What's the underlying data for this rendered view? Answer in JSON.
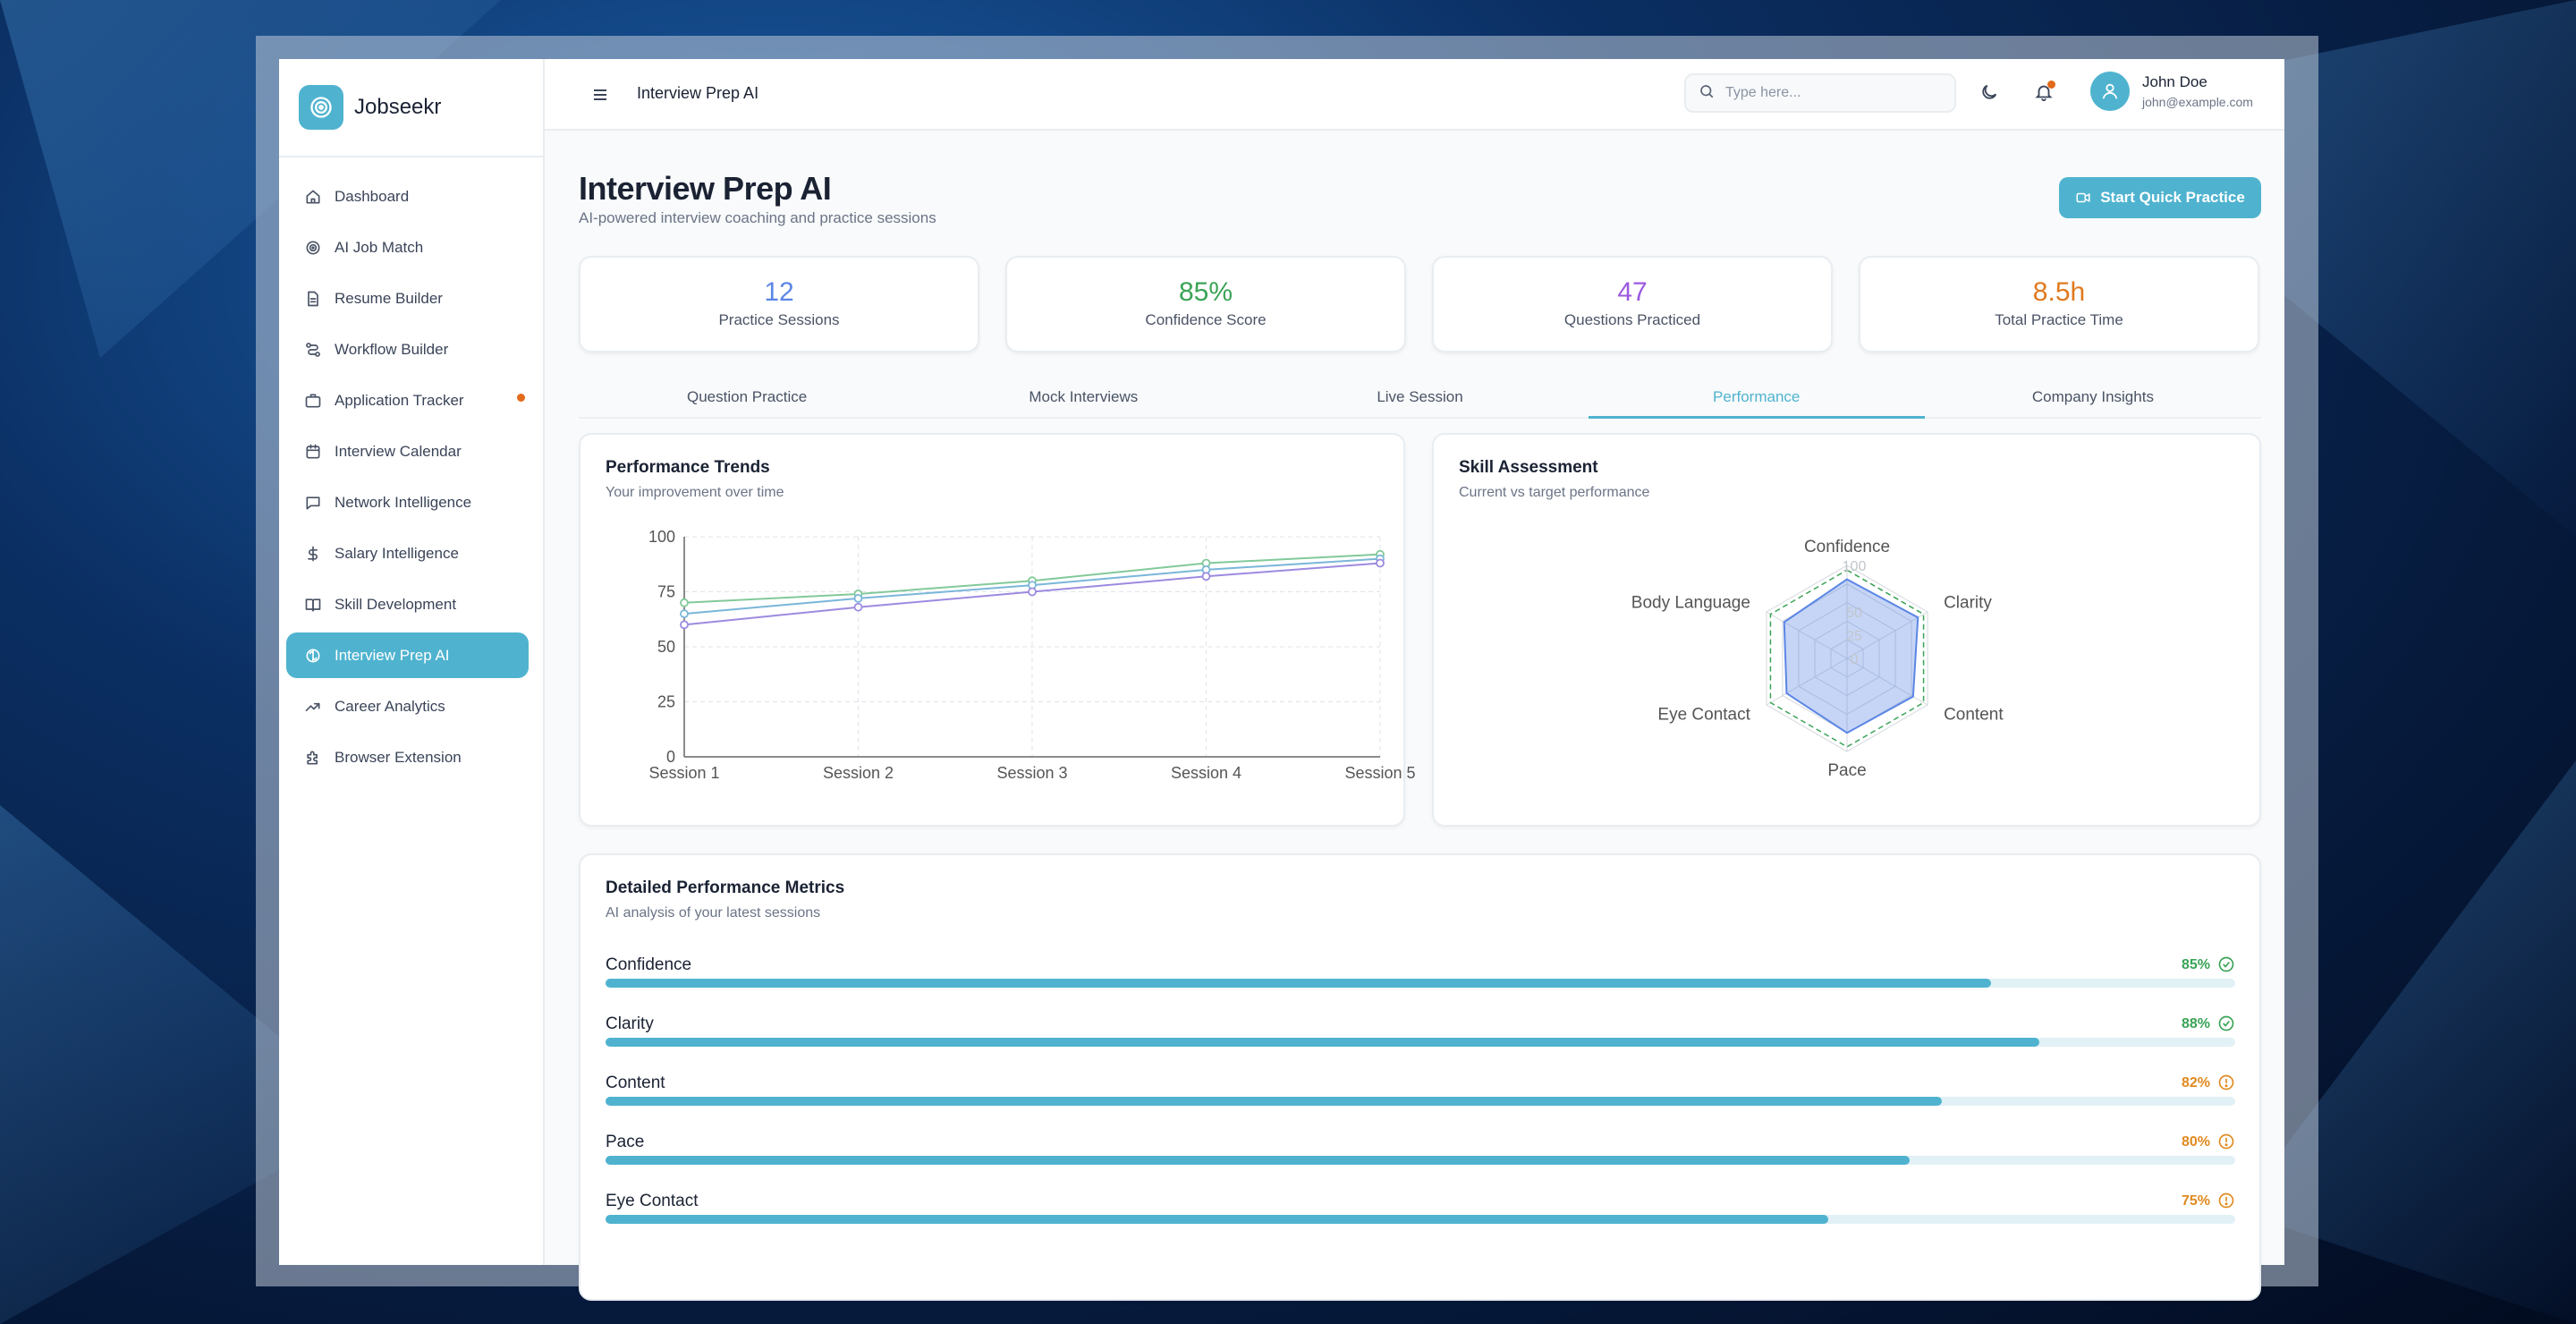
{
  "brand": {
    "name": "Jobseekr"
  },
  "sidebar": {
    "items": [
      {
        "label": "Dashboard",
        "icon": "home-icon"
      },
      {
        "label": "AI Job Match",
        "icon": "target-icon"
      },
      {
        "label": "Resume Builder",
        "icon": "document-icon"
      },
      {
        "label": "Workflow Builder",
        "icon": "workflow-icon"
      },
      {
        "label": "Application Tracker",
        "icon": "briefcase-icon",
        "notification": true
      },
      {
        "label": "Interview Calendar",
        "icon": "calendar-icon"
      },
      {
        "label": "Network Intelligence",
        "icon": "chat-icon"
      },
      {
        "label": "Salary Intelligence",
        "icon": "dollar-icon"
      },
      {
        "label": "Skill Development",
        "icon": "book-icon"
      },
      {
        "label": "Interview Prep AI",
        "icon": "brain-icon",
        "active": true
      },
      {
        "label": "Career Analytics",
        "icon": "trend-icon"
      },
      {
        "label": "Browser Extension",
        "icon": "puzzle-icon"
      }
    ]
  },
  "topbar": {
    "title": "Interview Prep AI",
    "search_placeholder": "Type here...",
    "user": {
      "name": "John Doe",
      "email": "john@example.com"
    }
  },
  "page": {
    "title": "Interview Prep AI",
    "subtitle": "AI-powered interview coaching and practice sessions",
    "quick_button": "Start Quick Practice"
  },
  "stats": [
    {
      "value": "12",
      "label": "Practice Sessions",
      "color": "#5b86e5"
    },
    {
      "value": "85%",
      "label": "Confidence Score",
      "color": "#3aa356"
    },
    {
      "value": "47",
      "label": "Questions Practiced",
      "color": "#9b59e0"
    },
    {
      "value": "8.5h",
      "label": "Total Practice Time",
      "color": "#e07a1f"
    }
  ],
  "tabs": [
    {
      "label": "Question Practice"
    },
    {
      "label": "Mock Interviews"
    },
    {
      "label": "Live Session"
    },
    {
      "label": "Performance",
      "active": true
    },
    {
      "label": "Company Insights"
    }
  ],
  "trends": {
    "title": "Performance Trends",
    "subtitle": "Your improvement over time"
  },
  "skills": {
    "title": "Skill Assessment",
    "subtitle": "Current vs target performance"
  },
  "metrics_card": {
    "title": "Detailed Performance Metrics",
    "subtitle": "AI analysis of your latest sessions"
  },
  "metrics": [
    {
      "name": "Confidence",
      "value": 85,
      "label": "85%",
      "status": "good"
    },
    {
      "name": "Clarity",
      "value": 88,
      "label": "88%",
      "status": "good"
    },
    {
      "name": "Content",
      "value": 82,
      "label": "82%",
      "status": "warn"
    },
    {
      "name": "Pace",
      "value": 80,
      "label": "80%",
      "status": "warn"
    },
    {
      "name": "Eye Contact",
      "value": 75,
      "label": "75%",
      "status": "warn"
    }
  ],
  "colors": {
    "accent": "#4fb3cf",
    "good": "#3aa356",
    "warn": "#e08a1f",
    "dot": "#e36a1c"
  },
  "chart_data": [
    {
      "type": "line",
      "x": [
        "Session 1",
        "Session 2",
        "Session 3",
        "Session 4",
        "Session 5"
      ],
      "ylim": [
        0,
        100
      ],
      "yticks": [
        0,
        25,
        50,
        75,
        100
      ],
      "grid": true,
      "series": [
        {
          "color": "#82c99a",
          "values": [
            70,
            74,
            80,
            88,
            92
          ]
        },
        {
          "color": "#7ab6d9",
          "values": [
            65,
            72,
            78,
            85,
            90
          ]
        },
        {
          "color": "#9d8ae0",
          "values": [
            60,
            68,
            75,
            82,
            88
          ]
        }
      ]
    },
    {
      "type": "radar",
      "axes": [
        "Confidence",
        "Clarity",
        "Content",
        "Pace",
        "Eye Contact",
        "Body Language"
      ],
      "rlim": [
        0,
        100
      ],
      "rticks": [
        0,
        25,
        50,
        100
      ],
      "series": [
        {
          "role": "current",
          "color": "#5b86e5",
          "values": [
            85,
            88,
            82,
            80,
            75,
            78
          ]
        },
        {
          "role": "target",
          "color": "#3aa356",
          "values": [
            95,
            95,
            95,
            95,
            95,
            95
          ]
        }
      ]
    }
  ]
}
